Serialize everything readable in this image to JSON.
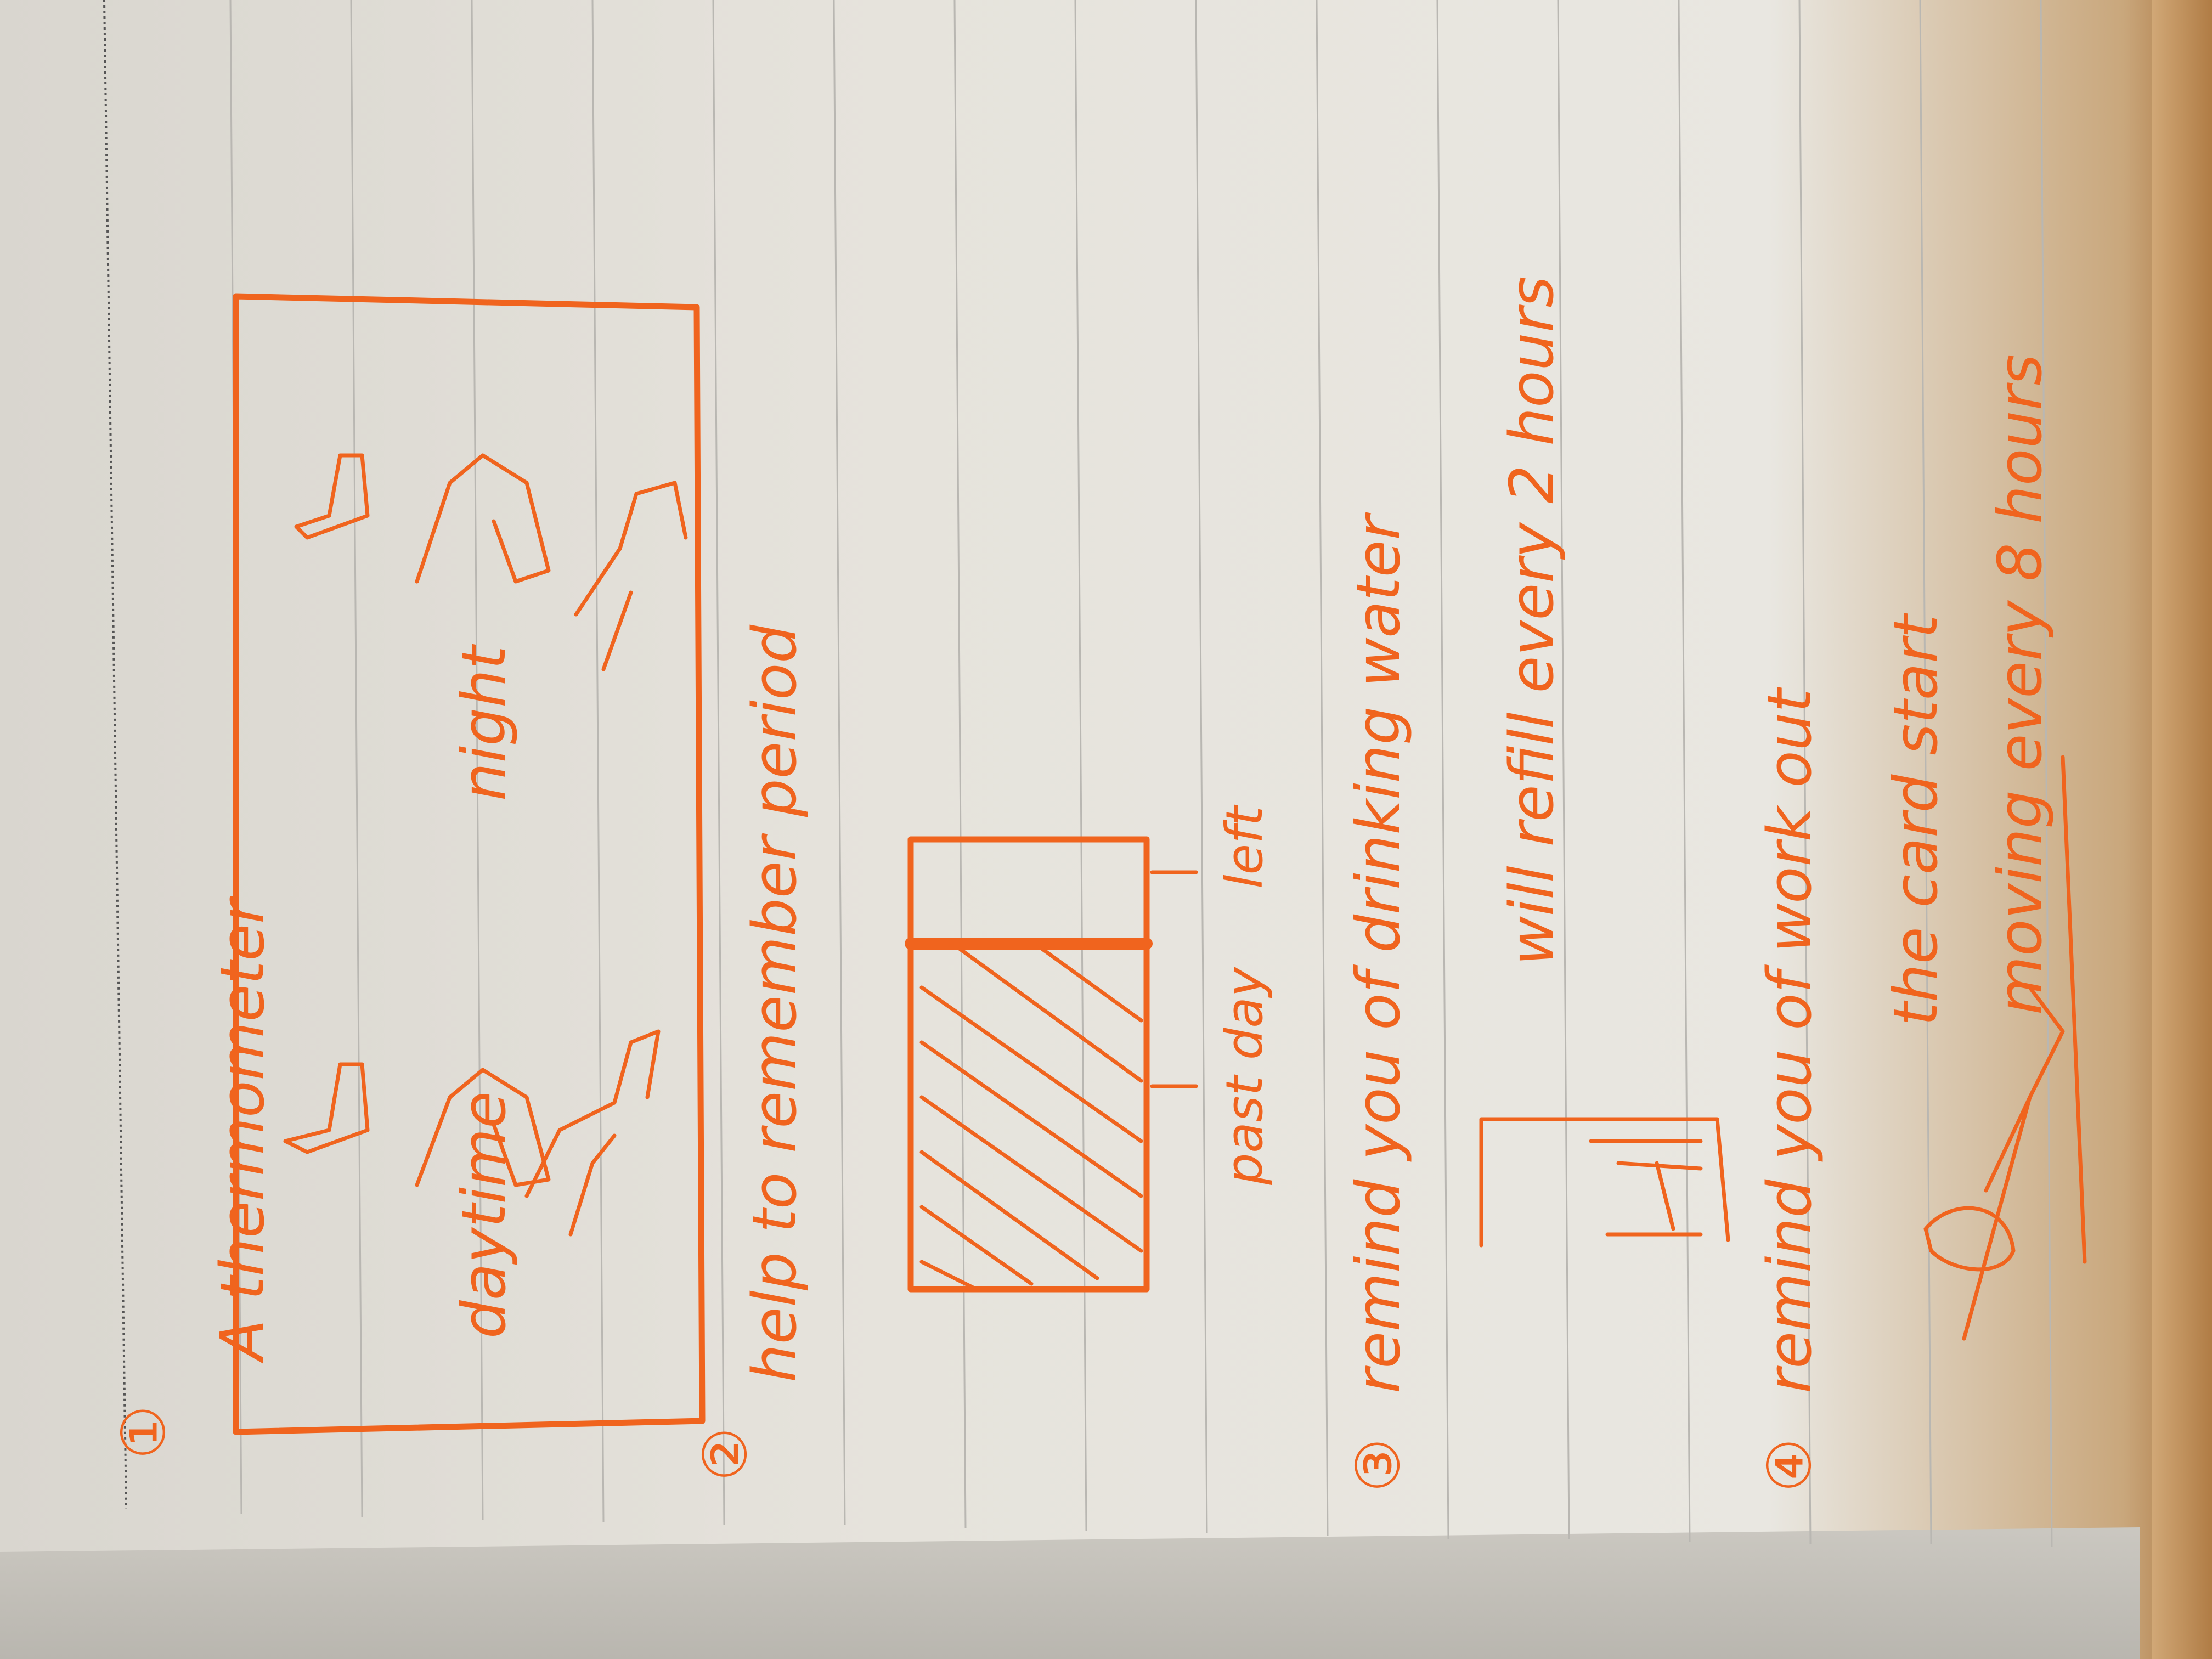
{
  "notes": {
    "item1_marker": "①",
    "thermometer_title": "A thermometer",
    "daytime_label": "daytime",
    "night_label": "night",
    "item2_marker": "②",
    "period_text": "help to remember period",
    "past_day_label": "past day",
    "left_label": "left",
    "item3_marker": "③",
    "water_text": "remind you of drinking water",
    "refill_text": "will refill every 2 hours",
    "item4_marker": "④",
    "workout_text_1": "remind you of work out",
    "workout_text_2": "the card start",
    "workout_text_3": "moving every 8 hours"
  },
  "colors": {
    "ink": "#f0641e",
    "paper": "#e6e3dc"
  }
}
